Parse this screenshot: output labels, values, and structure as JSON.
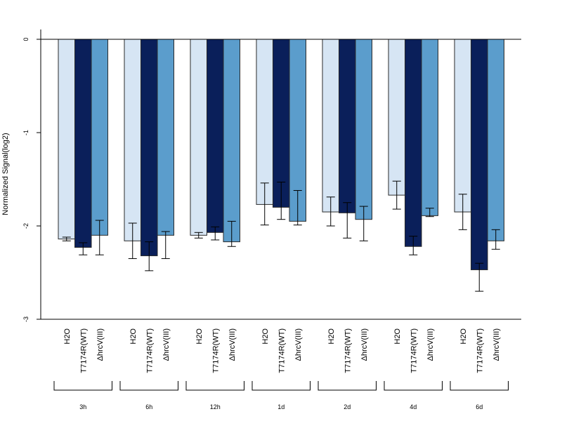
{
  "chart_data": {
    "type": "bar",
    "title": "",
    "xlabel": "",
    "ylabel": "Normalized Signal(log2)",
    "ylim": [
      -3,
      0
    ],
    "yticks": [
      0,
      -1,
      -2,
      -3
    ],
    "categories": [
      "H2O",
      "T7174R(WT)",
      "ΔhrcV(III)"
    ],
    "groups": [
      "3h",
      "6h",
      "12h",
      "1d",
      "2d",
      "4d",
      "6d"
    ],
    "colors": {
      "H2O": "#d6e5f4",
      "T7174R(WT)": "#0a1f5a",
      "ΔhrcV(III)": "#5b9dcc"
    },
    "series": [
      {
        "group": "3h",
        "values": [
          -2.14,
          -2.23,
          -2.1
        ],
        "err_low": [
          -2.16,
          -2.31,
          -2.31
        ],
        "err_high": [
          -2.12,
          -2.18,
          -1.94
        ]
      },
      {
        "group": "6h",
        "values": [
          -2.16,
          -2.32,
          -2.1
        ],
        "err_low": [
          -2.35,
          -2.48,
          -2.35
        ],
        "err_high": [
          -1.97,
          -2.17,
          -2.06
        ]
      },
      {
        "group": "12h",
        "values": [
          -2.1,
          -2.07,
          -2.17
        ],
        "err_low": [
          -2.13,
          -2.15,
          -2.22
        ],
        "err_high": [
          -2.07,
          -2.01,
          -1.95
        ]
      },
      {
        "group": "1d",
        "values": [
          -1.77,
          -1.8,
          -1.95
        ],
        "err_low": [
          -1.99,
          -1.93,
          -1.99
        ],
        "err_high": [
          -1.54,
          -1.53,
          -1.62
        ]
      },
      {
        "group": "2d",
        "values": [
          -1.85,
          -1.86,
          -1.93
        ],
        "err_low": [
          -2.0,
          -2.13,
          -2.16
        ],
        "err_high": [
          -1.69,
          -1.75,
          -1.79
        ]
      },
      {
        "group": "4d",
        "values": [
          -1.67,
          -2.22,
          -1.89
        ],
        "err_low": [
          -1.82,
          -2.31,
          -1.9
        ],
        "err_high": [
          -1.52,
          -2.11,
          -1.81
        ]
      },
      {
        "group": "6d",
        "values": [
          -1.85,
          -2.47,
          -2.16
        ],
        "err_low": [
          -2.04,
          -2.7,
          -2.25
        ],
        "err_high": [
          -1.66,
          -2.4,
          -2.04
        ]
      }
    ]
  }
}
